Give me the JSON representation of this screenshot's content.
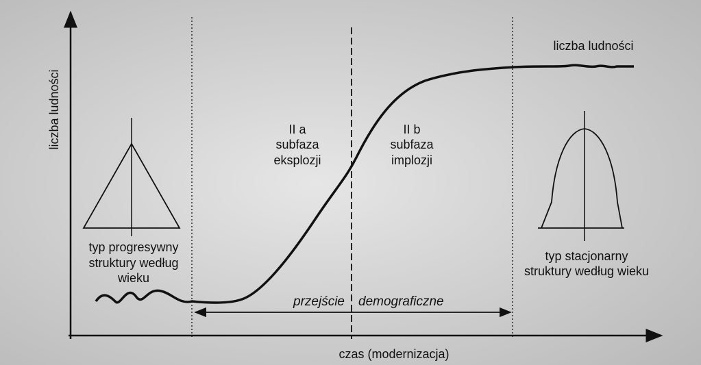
{
  "axes": {
    "y_label": "liczba ludności",
    "x_label": "czas (modernizacja)"
  },
  "curve_label": "liczba ludności",
  "phases": [
    {
      "name": "II a",
      "lines": [
        "subfaza",
        "eksplozji"
      ]
    },
    {
      "name": "II b",
      "lines": [
        "subfaza",
        "implozji"
      ]
    }
  ],
  "structures": [
    {
      "lines": [
        "typ progresywny",
        "struktury według",
        "wieku"
      ]
    },
    {
      "lines": [
        "typ stacjonarny",
        "struktury według wieku"
      ]
    }
  ],
  "transition": {
    "word1": "przejście",
    "word2": "demograficzne"
  }
}
